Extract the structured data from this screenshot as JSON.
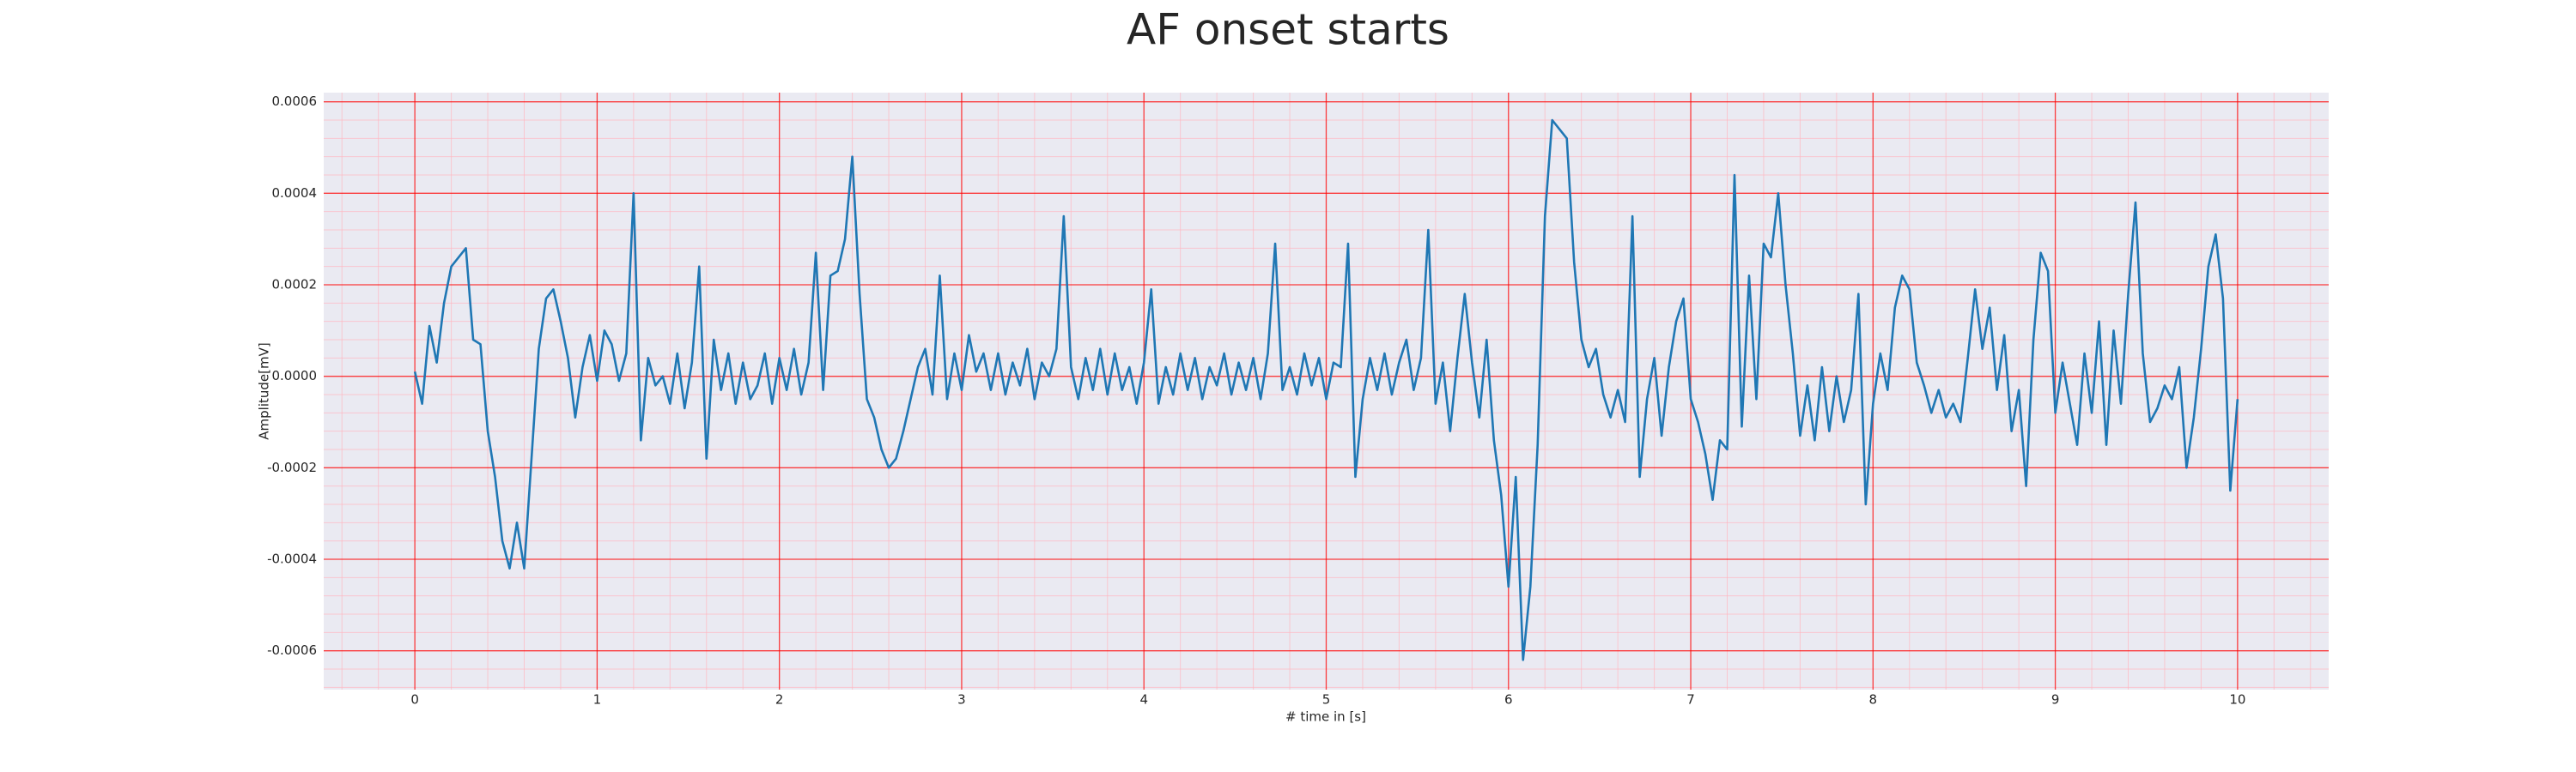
{
  "chart_data": {
    "type": "line",
    "title": "AF onset starts",
    "x_label": "# time in [s]",
    "y_label": "Amplitude[mV]",
    "color": "#1f77b4",
    "grid": true,
    "grid_color": "#ff0000",
    "minor_grid": true,
    "minor_grid_color": "#ffb6c1",
    "minor_grid_divisions": 5,
    "background": "#eaeaf2",
    "xlim": [
      -0.5,
      10.5
    ],
    "xticks": [
      0,
      1,
      2,
      3,
      4,
      5,
      6,
      7,
      8,
      9,
      10
    ],
    "ylim": [
      -0.000685,
      0.00062
    ],
    "yticks": [
      -0.0006,
      -0.0004,
      -0.0002,
      {
        "value": 0,
        "label": "0.0000"
      },
      0.0002,
      0.0004,
      0.0006
    ],
    "x": [
      0,
      0.04,
      0.08,
      0.12,
      0.16,
      0.2,
      0.24,
      0.28,
      0.32,
      0.36,
      0.4,
      0.44,
      0.48,
      0.52,
      0.56,
      0.6,
      0.64,
      0.68,
      0.72,
      0.76,
      0.8,
      0.84,
      0.88,
      0.92,
      0.96,
      1,
      1.04,
      1.08,
      1.12,
      1.16,
      1.2,
      1.24,
      1.28,
      1.32,
      1.36,
      1.4,
      1.44,
      1.48,
      1.52,
      1.56,
      1.6,
      1.64,
      1.68,
      1.72,
      1.76,
      1.8,
      1.84,
      1.88,
      1.92,
      1.96,
      2,
      2.04,
      2.08,
      2.12,
      2.16,
      2.2,
      2.24,
      2.28,
      2.32,
      2.36,
      2.4,
      2.44,
      2.48,
      2.52,
      2.56,
      2.6,
      2.64,
      2.68,
      2.72,
      2.76,
      2.8,
      2.84,
      2.88,
      2.92,
      2.96,
      3,
      3.04,
      3.08,
      3.12,
      3.16,
      3.2,
      3.24,
      3.28,
      3.32,
      3.36,
      3.4,
      3.44,
      3.48,
      3.52,
      3.56,
      3.6,
      3.64,
      3.68,
      3.72,
      3.76,
      3.8,
      3.84,
      3.88,
      3.92,
      3.96,
      4,
      4.04,
      4.08,
      4.12,
      4.16,
      4.2,
      4.24,
      4.28,
      4.32,
      4.36,
      4.4,
      4.44,
      4.48,
      4.52,
      4.56,
      4.6,
      4.64,
      4.68,
      4.72,
      4.76,
      4.8,
      4.84,
      4.88,
      4.92,
      4.96,
      5,
      5.04,
      5.08,
      5.12,
      5.16,
      5.2,
      5.24,
      5.28,
      5.32,
      5.36,
      5.4,
      5.44,
      5.48,
      5.52,
      5.56,
      5.6,
      5.64,
      5.68,
      5.72,
      5.76,
      5.8,
      5.84,
      5.88,
      5.92,
      5.96,
      6,
      6.04,
      6.08,
      6.12,
      6.16,
      6.2,
      6.24,
      6.28,
      6.32,
      6.36,
      6.4,
      6.44,
      6.48,
      6.52,
      6.56,
      6.6,
      6.64,
      6.68,
      6.72,
      6.76,
      6.8,
      6.84,
      6.88,
      6.92,
      6.96,
      7,
      7.04,
      7.08,
      7.12,
      7.16,
      7.2,
      7.24,
      7.28,
      7.32,
      7.36,
      7.4,
      7.44,
      7.48,
      7.52,
      7.56,
      7.6,
      7.64,
      7.68,
      7.72,
      7.76,
      7.8,
      7.84,
      7.88,
      7.92,
      7.96,
      8,
      8.04,
      8.08,
      8.12,
      8.16,
      8.2,
      8.24,
      8.28,
      8.32,
      8.36,
      8.4,
      8.44,
      8.48,
      8.52,
      8.56,
      8.6,
      8.64,
      8.68,
      8.72,
      8.76,
      8.8,
      8.84,
      8.88,
      8.92,
      8.96,
      9,
      9.04,
      9.08,
      9.12,
      9.16,
      9.2,
      9.24,
      9.28,
      9.32,
      9.36,
      9.4,
      9.44,
      9.48,
      9.52,
      9.56,
      9.6,
      9.64,
      9.68,
      9.72,
      9.76,
      9.8,
      9.84,
      9.88,
      9.92,
      9.96,
      10
    ],
    "values": [
      1e-05,
      -6e-05,
      0.00011,
      3e-05,
      0.00016,
      0.00024,
      0.00026,
      0.00028,
      8e-05,
      7e-05,
      -0.00012,
      -0.00022,
      -0.00036,
      -0.00042,
      -0.00032,
      -0.00042,
      -0.00018,
      6e-05,
      0.00017,
      0.00019,
      0.00012,
      4e-05,
      -9e-05,
      2e-05,
      9e-05,
      -1e-05,
      0.0001,
      7e-05,
      -1e-05,
      5e-05,
      0.0004,
      -0.00014,
      4e-05,
      -2e-05,
      0,
      -6e-05,
      5e-05,
      -7e-05,
      3e-05,
      0.00024,
      -0.00018,
      8e-05,
      -3e-05,
      5e-05,
      -6e-05,
      3e-05,
      -5e-05,
      -2e-05,
      5e-05,
      -6e-05,
      4e-05,
      -3e-05,
      6e-05,
      -4e-05,
      3e-05,
      0.00027,
      -3e-05,
      0.00022,
      0.00023,
      0.0003,
      0.00048,
      0.00018,
      -5e-05,
      -9e-05,
      -0.00016,
      -0.0002,
      -0.00018,
      -0.00012,
      -5e-05,
      2e-05,
      6e-05,
      -4e-05,
      0.00022,
      -5e-05,
      5e-05,
      -3e-05,
      9e-05,
      1e-05,
      5e-05,
      -3e-05,
      5e-05,
      -4e-05,
      3e-05,
      -2e-05,
      6e-05,
      -5e-05,
      3e-05,
      0,
      6e-05,
      0.00035,
      2e-05,
      -5e-05,
      4e-05,
      -3e-05,
      6e-05,
      -4e-05,
      5e-05,
      -3e-05,
      2e-05,
      -6e-05,
      3e-05,
      0.00019,
      -6e-05,
      2e-05,
      -4e-05,
      5e-05,
      -3e-05,
      4e-05,
      -5e-05,
      2e-05,
      -2e-05,
      5e-05,
      -4e-05,
      3e-05,
      -3e-05,
      4e-05,
      -5e-05,
      5e-05,
      0.00029,
      -3e-05,
      2e-05,
      -4e-05,
      5e-05,
      -2e-05,
      4e-05,
      -5e-05,
      3e-05,
      2e-05,
      0.00029,
      -0.00022,
      -5e-05,
      4e-05,
      -3e-05,
      5e-05,
      -4e-05,
      3e-05,
      8e-05,
      -3e-05,
      4e-05,
      0.00032,
      -6e-05,
      3e-05,
      -0.00012,
      4e-05,
      0.00018,
      3e-05,
      -9e-05,
      8e-05,
      -0.00014,
      -0.00026,
      -0.00046,
      -0.00022,
      -0.00062,
      -0.00046,
      -0.00015,
      0.00035,
      0.00056,
      0.00054,
      0.00052,
      0.00025,
      8e-05,
      2e-05,
      6e-05,
      -4e-05,
      -9e-05,
      -3e-05,
      -0.0001,
      0.00035,
      -0.00022,
      -5e-05,
      4e-05,
      -0.00013,
      2e-05,
      0.00012,
      0.00017,
      -5e-05,
      -0.0001,
      -0.00017,
      -0.00027,
      -0.00014,
      -0.00016,
      0.00044,
      -0.00011,
      0.00022,
      -5e-05,
      0.00029,
      0.00026,
      0.0004,
      0.0002,
      5e-05,
      -0.00013,
      -2e-05,
      -0.00014,
      2e-05,
      -0.00012,
      0,
      -0.0001,
      -3e-05,
      0.00018,
      -0.00028,
      -6e-05,
      5e-05,
      -3e-05,
      0.00015,
      0.00022,
      0.00019,
      3e-05,
      -2e-05,
      -8e-05,
      -3e-05,
      -9e-05,
      -6e-05,
      -0.0001,
      4e-05,
      0.00019,
      6e-05,
      0.00015,
      -3e-05,
      9e-05,
      -0.00012,
      -3e-05,
      -0.00024,
      8e-05,
      0.00027,
      0.00023,
      -8e-05,
      3e-05,
      -6e-05,
      -0.00015,
      5e-05,
      -8e-05,
      0.00012,
      -0.00015,
      0.0001,
      -6e-05,
      0.00018,
      0.00038,
      5e-05,
      -0.0001,
      -7e-05,
      -2e-05,
      -5e-05,
      2e-05,
      -0.0002,
      -9e-05,
      6e-05,
      0.00024,
      0.00031,
      0.00017,
      -0.00025,
      -5e-05
    ]
  }
}
